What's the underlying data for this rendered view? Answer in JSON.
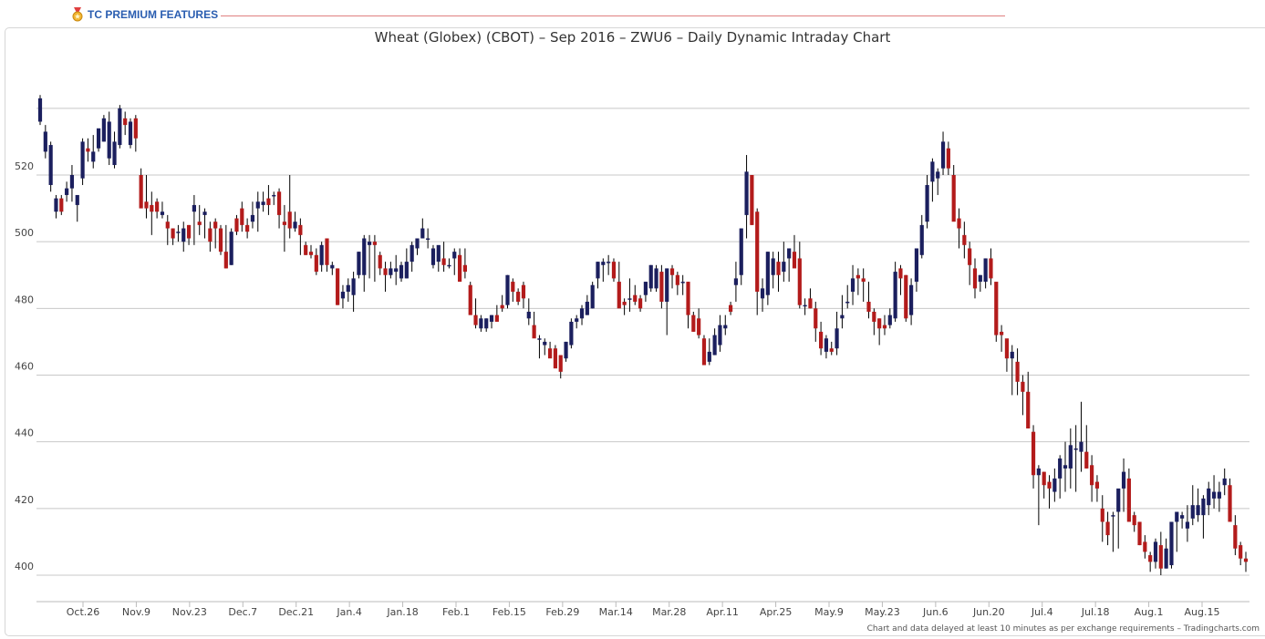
{
  "header": {
    "badge_label": "TC PREMIUM FEATURES",
    "footer_note": "Chart and data delayed at least 10 minutes as per exchange requirements – Tradingcharts.com"
  },
  "colors": {
    "up": "#1b1f5e",
    "down": "#b31b1b",
    "grid": "#c8c8c8",
    "wick": "#000000"
  },
  "chart_data": {
    "type": "candlestick",
    "title": "Wheat (Globex) (CBOT) – Sep 2016 – ZWU6 – Daily Dynamic Intraday Chart",
    "ylim": [
      387,
      546
    ],
    "y_ticks": [
      400,
      420,
      440,
      460,
      480,
      500,
      520
    ],
    "x_ticks": [
      "Oct.26",
      "Nov.9",
      "Nov.23",
      "Dec.7",
      "Dec.21",
      "Jan.4",
      "Jan.18",
      "Feb.1",
      "Feb.15",
      "Feb.29",
      "Mar.14",
      "Mar.28",
      "Apr.11",
      "Apr.25",
      "May.9",
      "May.23",
      "Jun.6",
      "Jun.20",
      "Jul.4",
      "Jul.18",
      "Aug.1",
      "Aug.15"
    ],
    "grid": true,
    "candles": [
      [
        544.0,
        535.0,
        536.0,
        543.0
      ],
      [
        535.0,
        525.0,
        527.0,
        533.0
      ],
      [
        530.0,
        515.0,
        517.0,
        529.0
      ],
      [
        514.0,
        507.0,
        509.0,
        513.0
      ],
      [
        514.0,
        508.0,
        513.0,
        509.0
      ],
      [
        518.0,
        512.0,
        514.0,
        516.0
      ],
      [
        523.0,
        512.0,
        516.0,
        520.0
      ],
      [
        513.0,
        506.0,
        511.0,
        514.0
      ],
      [
        531.0,
        517.0,
        519.0,
        530.0
      ],
      [
        531.0,
        524.0,
        528.0,
        527.0
      ],
      [
        532.0,
        522.0,
        524.0,
        527.0
      ],
      [
        533.0,
        527.0,
        528.0,
        534.0
      ],
      [
        538.0,
        530.0,
        530.0,
        537.0
      ],
      [
        539.0,
        523.0,
        525.0,
        536.0
      ],
      [
        533.0,
        522.0,
        523.0,
        530.0
      ],
      [
        541.0,
        528.0,
        529.0,
        540.0
      ],
      [
        539.0,
        532.0,
        537.0,
        535.0
      ],
      [
        537.0,
        528.0,
        529.0,
        536.0
      ],
      [
        538.0,
        527.0,
        537.0,
        531.0
      ],
      [
        522.0,
        512.0,
        520.0,
        510.0
      ],
      [
        520.0,
        507.0,
        512.0,
        510.0
      ],
      [
        515.0,
        502.0,
        511.0,
        509.0
      ],
      [
        513.0,
        507.0,
        512.0,
        509.0
      ],
      [
        512.0,
        507.0,
        508.0,
        509.0
      ],
      [
        508.0,
        499.0,
        506.0,
        504.0
      ],
      [
        504.0,
        499.0,
        504.0,
        501.0
      ],
      [
        505.0,
        500.0,
        503.0,
        503.0
      ],
      [
        506.0,
        497.0,
        500.0,
        504.0
      ],
      [
        505.0,
        499.0,
        505.0,
        501.0
      ],
      [
        514.0,
        499.0,
        509.0,
        511.0
      ],
      [
        511.0,
        502.0,
        506.0,
        505.0
      ],
      [
        510.0,
        501.0,
        508.0,
        509.0
      ],
      [
        506.0,
        497.0,
        504.0,
        500.0
      ],
      [
        507.0,
        498.0,
        506.0,
        504.0
      ],
      [
        505.0,
        496.0,
        504.0,
        497.0
      ],
      [
        505.0,
        492.0,
        497.0,
        492.0
      ],
      [
        504.0,
        493.0,
        493.0,
        503.0
      ],
      [
        508.0,
        502.0,
        507.0,
        503.0
      ],
      [
        512.0,
        503.0,
        510.0,
        505.0
      ],
      [
        507.0,
        501.0,
        505.0,
        503.0
      ],
      [
        512.0,
        504.0,
        506.0,
        508.0
      ],
      [
        515.0,
        503.0,
        510.0,
        512.0
      ],
      [
        515.0,
        509.0,
        511.0,
        512.0
      ],
      [
        517.0,
        508.0,
        513.0,
        511.0
      ],
      [
        515.0,
        511.0,
        514.0,
        514.0
      ],
      [
        516.0,
        504.0,
        515.0,
        508.0
      ],
      [
        511.0,
        497.0,
        506.0,
        505.0
      ],
      [
        520.0,
        501.0,
        509.0,
        504.0
      ],
      [
        509.0,
        503.0,
        504.0,
        506.0
      ],
      [
        507.0,
        496.0,
        505.0,
        502.0
      ],
      [
        500.0,
        496.0,
        499.0,
        496.0
      ],
      [
        499.0,
        495.0,
        497.0,
        496.0
      ],
      [
        498.0,
        490.0,
        496.0,
        491.0
      ],
      [
        500.0,
        491.0,
        493.0,
        499.0
      ],
      [
        501.0,
        491.0,
        501.0,
        493.0
      ],
      [
        494.0,
        490.0,
        492.0,
        493.0
      ],
      [
        492.0,
        481.0,
        492.0,
        481.0
      ],
      [
        487.0,
        480.0,
        483.0,
        485.0
      ],
      [
        489.0,
        482.0,
        485.0,
        487.0
      ],
      [
        491.0,
        479.0,
        484.0,
        489.0
      ],
      [
        497.0,
        489.0,
        490.0,
        497.0
      ],
      [
        502.0,
        485.0,
        490.0,
        501.0
      ],
      [
        502.0,
        489.0,
        499.0,
        500.0
      ],
      [
        502.0,
        488.0,
        500.0,
        499.0
      ],
      [
        497.0,
        490.0,
        496.0,
        492.0
      ],
      [
        494.0,
        485.0,
        492.0,
        490.0
      ],
      [
        494.0,
        489.0,
        490.0,
        492.0
      ],
      [
        496.0,
        487.0,
        491.0,
        492.0
      ],
      [
        494.0,
        488.0,
        489.0,
        493.0
      ],
      [
        498.0,
        489.0,
        489.0,
        494.0
      ],
      [
        500.0,
        491.0,
        494.0,
        499.0
      ],
      [
        501.0,
        496.0,
        498.0,
        501.0
      ],
      [
        507.0,
        501.0,
        501.0,
        504.0
      ],
      [
        504.0,
        498.0,
        501.0,
        501.0
      ],
      [
        499.0,
        492.0,
        493.0,
        498.0
      ],
      [
        498.0,
        491.0,
        494.0,
        499.0
      ],
      [
        500.0,
        491.0,
        495.0,
        493.0
      ],
      [
        495.0,
        492.0,
        493.0,
        493.0
      ],
      [
        498.0,
        490.0,
        495.0,
        497.0
      ],
      [
        498.0,
        488.0,
        496.0,
        488.0
      ],
      [
        498.0,
        489.0,
        493.0,
        491.0
      ],
      [
        488.0,
        480.0,
        487.0,
        478.0
      ],
      [
        483.0,
        474.0,
        478.0,
        475.0
      ],
      [
        478.0,
        473.0,
        474.0,
        477.0
      ],
      [
        477.0,
        473.0,
        474.0,
        477.0
      ],
      [
        478.0,
        474.0,
        476.0,
        478.0
      ],
      [
        481.0,
        476.0,
        478.0,
        476.0
      ],
      [
        484.0,
        479.0,
        481.0,
        480.0
      ],
      [
        490.0,
        480.0,
        481.0,
        490.0
      ],
      [
        489.0,
        482.0,
        488.0,
        485.0
      ],
      [
        486.0,
        481.0,
        485.0,
        482.0
      ],
      [
        488.0,
        480.0,
        487.0,
        483.0
      ],
      [
        483.0,
        475.0,
        477.0,
        479.0
      ],
      [
        479.0,
        472.0,
        475.0,
        471.0
      ],
      [
        472.0,
        465.0,
        471.0,
        471.0
      ],
      [
        471.0,
        466.0,
        469.0,
        470.0
      ],
      [
        470.0,
        466.0,
        468.0,
        465.0
      ],
      [
        469.0,
        466.0,
        468.0,
        462.0
      ],
      [
        462.0,
        459.0,
        466.0,
        461.0
      ],
      [
        470.0,
        464.0,
        465.0,
        470.0
      ],
      [
        477.0,
        468.0,
        469.0,
        476.0
      ],
      [
        478.0,
        474.0,
        476.0,
        477.0
      ],
      [
        481.0,
        475.0,
        477.0,
        480.0
      ],
      [
        484.0,
        478.0,
        478.0,
        482.0
      ],
      [
        488.0,
        480.0,
        480.0,
        487.0
      ],
      [
        494.0,
        486.0,
        489.0,
        494.0
      ],
      [
        495.0,
        488.0,
        493.0,
        494.0
      ],
      [
        496.0,
        490.0,
        494.0,
        494.0
      ],
      [
        495.0,
        488.0,
        494.0,
        489.0
      ],
      [
        494.0,
        481.0,
        488.0,
        480.0
      ],
      [
        483.0,
        478.0,
        482.0,
        481.0
      ],
      [
        489.0,
        479.0,
        483.0,
        483.0
      ],
      [
        487.0,
        481.0,
        484.0,
        482.0
      ],
      [
        484.0,
        479.0,
        483.0,
        480.0
      ],
      [
        488.0,
        482.0,
        484.0,
        488.0
      ],
      [
        493.0,
        485.0,
        486.0,
        493.0
      ],
      [
        493.0,
        485.0,
        486.0,
        492.0
      ],
      [
        493.0,
        480.0,
        491.0,
        482.0
      ],
      [
        492.0,
        472.0,
        482.0,
        492.0
      ],
      [
        493.0,
        486.0,
        492.0,
        490.0
      ],
      [
        491.0,
        484.0,
        490.0,
        487.0
      ],
      [
        490.0,
        484.0,
        488.0,
        488.0
      ],
      [
        488.0,
        474.0,
        488.0,
        478.0
      ],
      [
        479.0,
        473.0,
        478.0,
        473.0
      ],
      [
        480.0,
        471.0,
        477.0,
        472.0
      ],
      [
        472.0,
        463.0,
        471.0,
        463.0
      ],
      [
        471.0,
        463.0,
        464.0,
        467.0
      ],
      [
        474.0,
        466.0,
        466.0,
        472.0
      ],
      [
        478.0,
        467.0,
        469.0,
        475.0
      ],
      [
        478.0,
        472.0,
        474.0,
        475.0
      ],
      [
        482.0,
        478.0,
        481.0,
        479.0
      ],
      [
        494.0,
        482.0,
        487.0,
        489.0
      ],
      [
        504.0,
        487.0,
        490.0,
        504.0
      ],
      [
        526.0,
        501.0,
        508.0,
        521.0
      ],
      [
        519.0,
        505.0,
        520.0,
        505.0
      ],
      [
        510.0,
        478.0,
        509.0,
        485.0
      ],
      [
        489.0,
        479.0,
        483.0,
        486.0
      ],
      [
        497.0,
        481.0,
        484.0,
        497.0
      ],
      [
        497.0,
        486.0,
        490.0,
        495.0
      ],
      [
        497.0,
        485.0,
        494.0,
        490.0
      ],
      [
        500.0,
        488.0,
        491.0,
        494.0
      ],
      [
        498.0,
        488.0,
        495.0,
        498.0
      ],
      [
        502.0,
        493.0,
        497.0,
        492.0
      ],
      [
        500.0,
        480.0,
        495.0,
        481.0
      ],
      [
        483.0,
        478.0,
        481.0,
        481.0
      ],
      [
        486.0,
        480.0,
        483.0,
        480.0
      ],
      [
        482.0,
        470.0,
        480.0,
        474.0
      ],
      [
        476.0,
        466.0,
        473.0,
        468.0
      ],
      [
        472.0,
        465.0,
        467.0,
        471.0
      ],
      [
        470.0,
        466.0,
        468.0,
        467.0
      ],
      [
        479.0,
        466.0,
        468.0,
        474.0
      ],
      [
        484.0,
        474.0,
        477.0,
        478.0
      ],
      [
        487.0,
        480.0,
        482.0,
        482.0
      ],
      [
        493.0,
        481.0,
        485.0,
        489.0
      ],
      [
        492.0,
        484.0,
        490.0,
        489.0
      ],
      [
        492.0,
        482.0,
        489.0,
        488.0
      ],
      [
        488.0,
        477.0,
        482.0,
        479.0
      ],
      [
        480.0,
        472.0,
        479.0,
        476.0
      ],
      [
        477.0,
        469.0,
        477.0,
        474.0
      ],
      [
        478.0,
        472.0,
        475.0,
        474.0
      ],
      [
        480.0,
        474.0,
        475.0,
        478.0
      ],
      [
        494.0,
        476.0,
        477.0,
        491.0
      ],
      [
        493.0,
        484.0,
        492.0,
        489.0
      ],
      [
        490.0,
        476.0,
        490.0,
        477.0
      ],
      [
        489.0,
        475.0,
        478.0,
        487.0
      ],
      [
        498.0,
        485.0,
        488.0,
        498.0
      ],
      [
        508.0,
        495.0,
        496.0,
        505.0
      ],
      [
        520.0,
        504.0,
        506.0,
        517.0
      ],
      [
        525.0,
        512.0,
        518.0,
        524.0
      ],
      [
        522.0,
        514.0,
        519.0,
        521.0
      ],
      [
        533.0,
        520.0,
        522.0,
        530.0
      ],
      [
        530.0,
        520.0,
        528.0,
        522.0
      ],
      [
        523.0,
        510.0,
        520.0,
        506.0
      ],
      [
        510.0,
        498.0,
        507.0,
        504.0
      ],
      [
        506.0,
        495.0,
        502.0,
        499.0
      ],
      [
        500.0,
        487.0,
        498.0,
        493.0
      ],
      [
        495.0,
        483.0,
        492.0,
        486.0
      ],
      [
        490.0,
        485.0,
        488.0,
        490.0
      ],
      [
        495.0,
        486.0,
        488.0,
        495.0
      ],
      [
        498.0,
        487.0,
        495.0,
        489.0
      ],
      [
        487.0,
        470.0,
        488.0,
        472.0
      ],
      [
        475.0,
        467.0,
        473.0,
        472.0
      ],
      [
        469.0,
        461.0,
        471.0,
        465.0
      ],
      [
        469.0,
        454.0,
        465.0,
        467.0
      ],
      [
        468.0,
        454.0,
        464.0,
        458.0
      ],
      [
        460.0,
        448.0,
        458.0,
        455.0
      ],
      [
        461.0,
        444.0,
        455.0,
        444.0
      ],
      [
        445.0,
        426.0,
        443.0,
        430.0
      ],
      [
        433.0,
        415.0,
        430.0,
        432.0
      ],
      [
        431.0,
        423.0,
        431.0,
        427.0
      ],
      [
        430.0,
        420.0,
        428.0,
        426.0
      ],
      [
        432.0,
        422.0,
        425.0,
        429.0
      ],
      [
        436.0,
        423.0,
        429.0,
        435.0
      ],
      [
        440.0,
        425.0,
        432.0,
        433.0
      ],
      [
        444.0,
        426.0,
        432.0,
        439.0
      ],
      [
        445.0,
        425.0,
        438.0,
        438.0
      ],
      [
        452.0,
        431.0,
        437.0,
        440.0
      ],
      [
        445.0,
        432.0,
        437.0,
        432.0
      ],
      [
        436.0,
        422.0,
        433.0,
        427.0
      ],
      [
        430.0,
        422.0,
        428.0,
        426.0
      ],
      [
        424.0,
        410.0,
        420.0,
        416.0
      ],
      [
        419.0,
        409.0,
        416.0,
        412.0
      ],
      [
        419.0,
        407.0,
        418.0,
        418.0
      ],
      [
        423.0,
        408.0,
        419.0,
        426.0
      ],
      [
        435.0,
        419.0,
        426.0,
        431.0
      ],
      [
        432.0,
        418.0,
        429.0,
        416.0
      ],
      [
        419.0,
        413.0,
        418.0,
        415.0
      ],
      [
        416.0,
        409.0,
        416.0,
        409.0
      ],
      [
        412.0,
        405.0,
        410.0,
        407.0
      ],
      [
        407.0,
        401.0,
        406.0,
        404.0
      ],
      [
        411.0,
        402.0,
        404.0,
        410.0
      ],
      [
        413.0,
        400.0,
        409.0,
        402.0
      ],
      [
        411.0,
        402.0,
        402.0,
        408.0
      ],
      [
        414.0,
        402.0,
        403.0,
        416.0
      ],
      [
        419.0,
        407.0,
        416.0,
        419.0
      ],
      [
        419.0,
        414.0,
        417.0,
        418.0
      ],
      [
        421.0,
        410.0,
        414.0,
        416.0
      ],
      [
        427.0,
        415.0,
        417.0,
        421.0
      ],
      [
        426.0,
        416.0,
        418.0,
        421.0
      ],
      [
        424.0,
        411.0,
        418.0,
        423.0
      ],
      [
        428.0,
        418.0,
        421.0,
        426.0
      ],
      [
        430.0,
        420.0,
        423.0,
        425.0
      ],
      [
        428.0,
        419.0,
        423.0,
        425.0
      ],
      [
        432.0,
        424.0,
        427.0,
        429.0
      ],
      [
        429.0,
        421.0,
        427.0,
        416.0
      ],
      [
        418.0,
        406.0,
        415.0,
        408.0
      ],
      [
        410.0,
        403.0,
        409.0,
        405.0
      ],
      [
        407.0,
        401.0,
        405.0,
        404.0
      ]
    ]
  }
}
